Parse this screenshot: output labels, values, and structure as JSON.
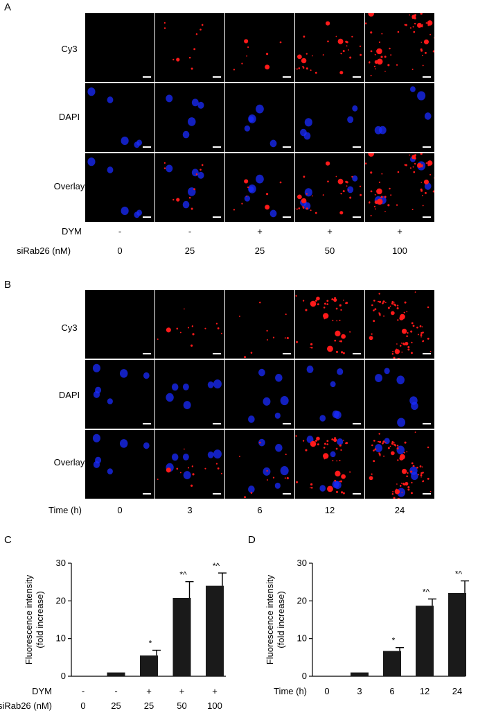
{
  "panel_A": {
    "letter": "A",
    "rows": [
      "Cy3",
      "DAPI",
      "Overlay"
    ],
    "conditions": [
      {
        "label": "DYM",
        "values": [
          "-",
          "-",
          "+",
          "+",
          "+"
        ]
      },
      {
        "label": "siRab26 (nM)",
        "values": [
          "0",
          "25",
          "25",
          "50",
          "100"
        ]
      }
    ]
  },
  "panel_B": {
    "letter": "B",
    "rows": [
      "Cy3",
      "DAPI",
      "Overlay"
    ],
    "conditions": [
      {
        "label": "Time (h)",
        "values": [
          "0",
          "3",
          "6",
          "12",
          "24"
        ]
      }
    ]
  },
  "colors": {
    "cy3": "#ff1a1a",
    "dapi": "#1a2bff",
    "bar": "#1a1a1a"
  },
  "chart_data": [
    {
      "panel": "C",
      "type": "bar",
      "categories": [
        "0",
        "25",
        "25",
        "50",
        "100"
      ],
      "cond_rows": [
        {
          "label": "DYM",
          "values": [
            "-",
            "-",
            "+",
            "+",
            "+"
          ]
        },
        {
          "label": "siRab26 (nM)",
          "values": [
            "0",
            "25",
            "25",
            "50",
            "100"
          ]
        }
      ],
      "values": [
        0,
        1,
        5.5,
        20.8,
        24.0
      ],
      "errors": [
        0,
        0,
        1.4,
        4.3,
        3.4
      ],
      "annotations": [
        "",
        "",
        "*",
        "*^",
        "*^"
      ],
      "ylabel": [
        "Fluorescence intensity",
        "(fold increase)"
      ],
      "ylim": [
        0,
        30
      ],
      "yticks": [
        0,
        10,
        20,
        30
      ]
    },
    {
      "panel": "D",
      "type": "bar",
      "categories": [
        "0",
        "3",
        "6",
        "12",
        "24"
      ],
      "xlabel": "Time (h)",
      "values": [
        0,
        1,
        6.7,
        18.7,
        22.1
      ],
      "errors": [
        0,
        0,
        0.9,
        1.8,
        3.2
      ],
      "annotations": [
        "",
        "",
        "*",
        "*^",
        "*^"
      ],
      "ylabel": [
        "Fluorescence intensity",
        "(fold increase)"
      ],
      "ylim": [
        0,
        30
      ],
      "yticks": [
        0,
        10,
        20,
        30
      ]
    }
  ]
}
